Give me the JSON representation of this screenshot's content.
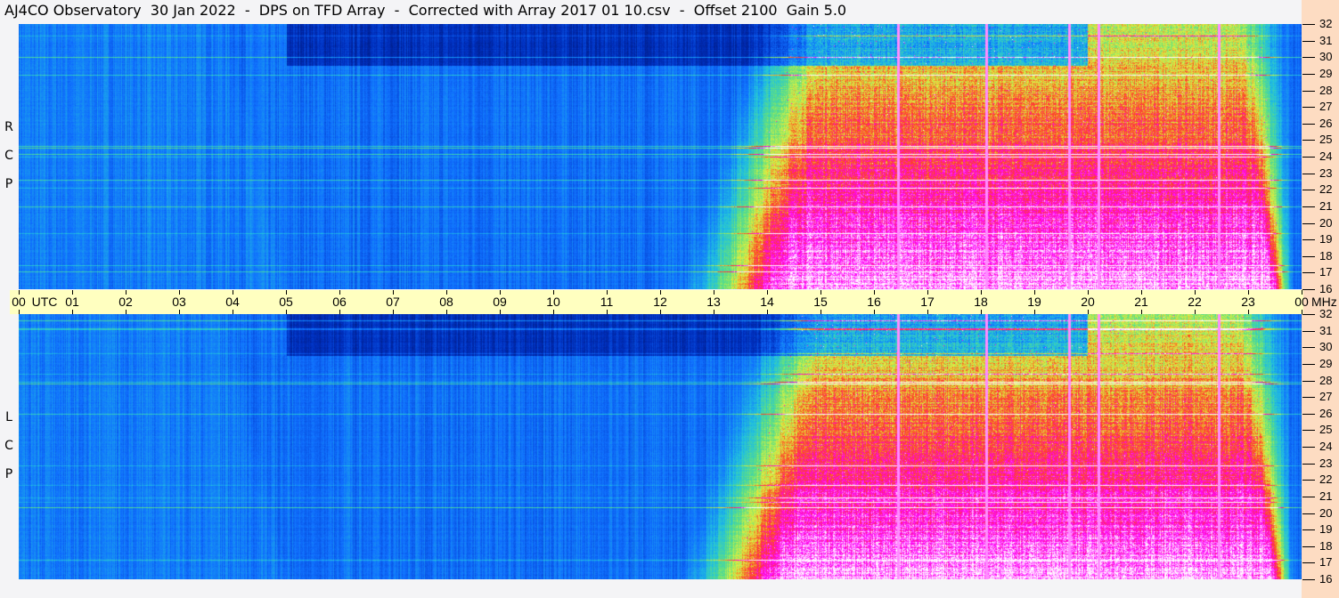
{
  "title": "AJ4CO Observatory  30 Jan 2022  -  DPS on TFD Array  -  Corrected with Array 2017 01 10.csv  -  Offset 2100  Gain 5.0",
  "chart_data": {
    "type": "heatmap",
    "panels": [
      {
        "name": "RCP",
        "label": [
          "R",
          "C",
          "P"
        ]
      },
      {
        "name": "LCP",
        "label": [
          "L",
          "C",
          "P"
        ]
      }
    ],
    "x_axis": {
      "unit": "UTC",
      "range": [
        0,
        24
      ],
      "tick_labels": [
        "00",
        "01",
        "02",
        "03",
        "04",
        "05",
        "06",
        "07",
        "08",
        "09",
        "10",
        "11",
        "12",
        "13",
        "14",
        "15",
        "16",
        "17",
        "18",
        "19",
        "20",
        "21",
        "22",
        "23",
        "00"
      ]
    },
    "y_axis": {
      "unit": "MHz",
      "range": [
        16,
        32
      ],
      "tick_labels": [
        "16",
        "17",
        "18",
        "19",
        "20",
        "21",
        "22",
        "23",
        "24",
        "25",
        "26",
        "27",
        "28",
        "29",
        "30",
        "31",
        "32"
      ]
    },
    "colormap": [
      "#000000",
      "#001060",
      "#0030c0",
      "#1070ff",
      "#20c0e0",
      "#60e080",
      "#e0f040",
      "#ff4020",
      "#ff00ff",
      "#ffffff"
    ],
    "description_values": {
      "night_quiet_utc": [
        5,
        12
      ],
      "day_enhanced_utc": [
        13.5,
        23
      ],
      "vertical_interference_utc": [
        16.45,
        18.1,
        19.65,
        20.2,
        22.45
      ]
    }
  }
}
